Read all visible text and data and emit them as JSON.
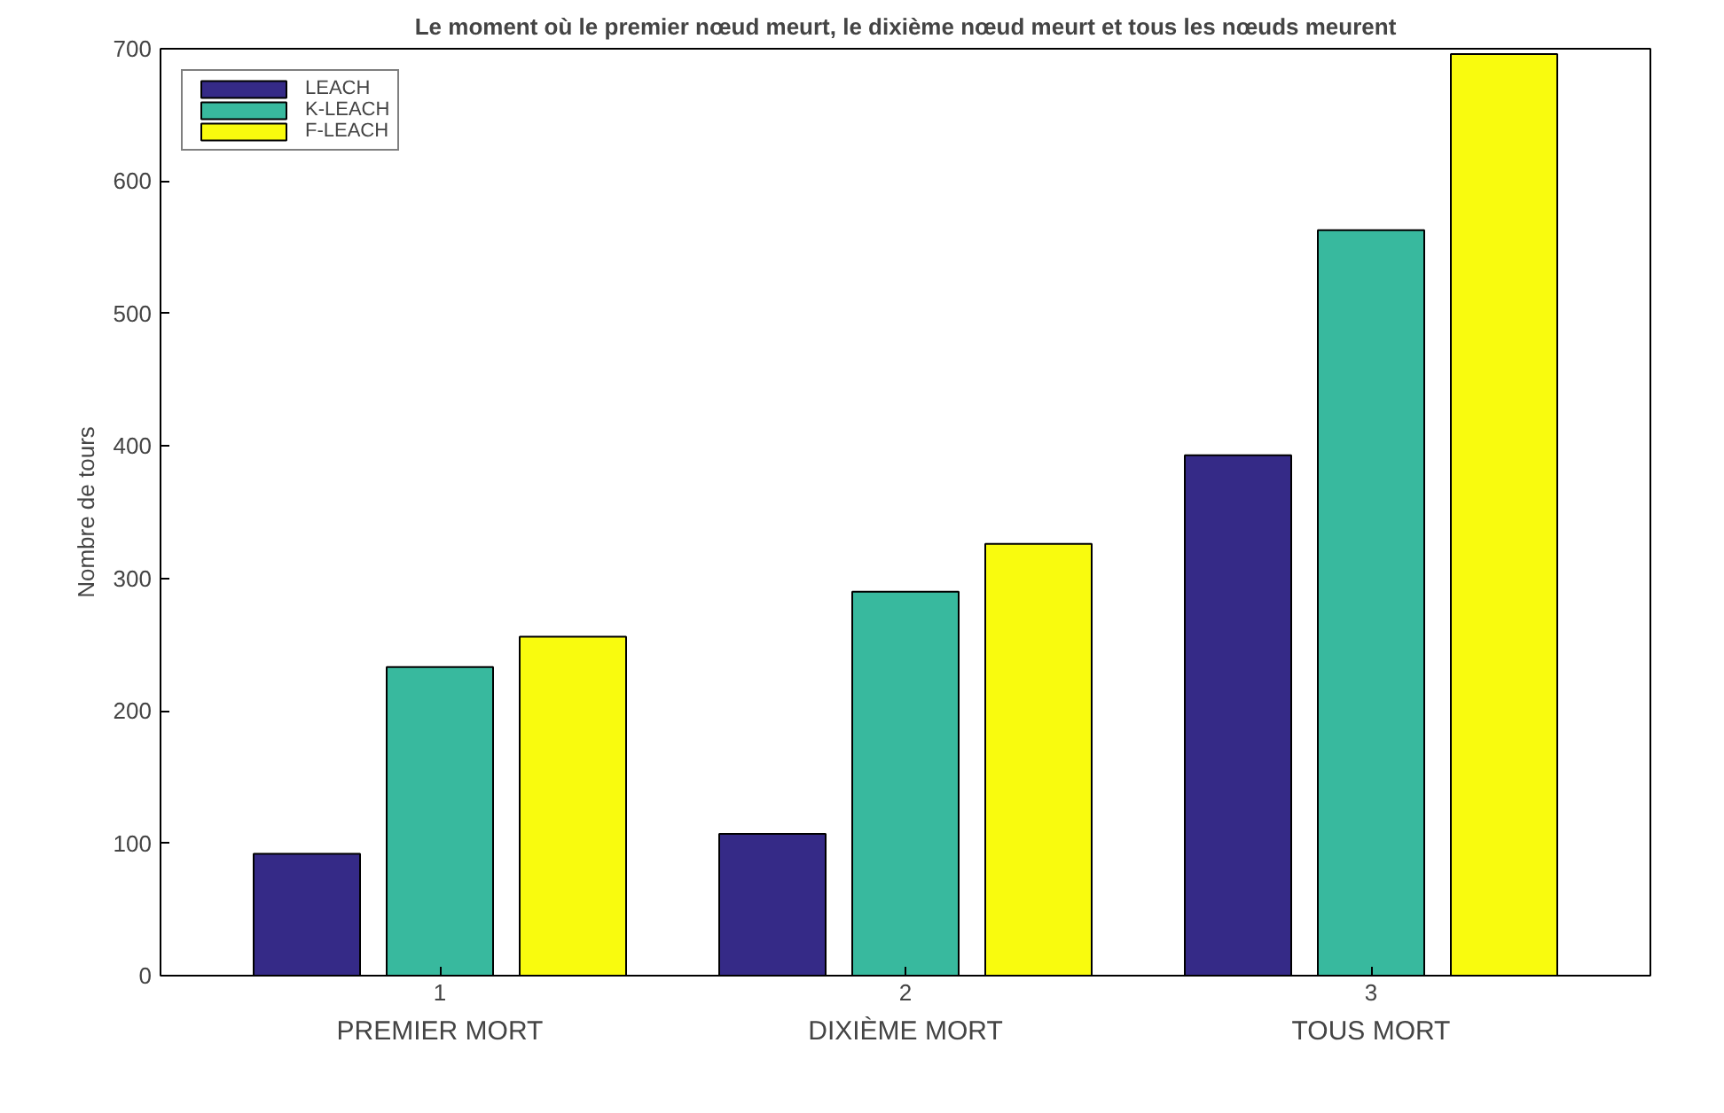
{
  "chart_data": {
    "type": "bar",
    "title": "Le moment où le premier nœud meurt, le dixième nœud meurt et tous les nœuds meurent",
    "ylabel": "Nombre de tours",
    "x": [
      1,
      2,
      3
    ],
    "xlim": [
      0.4,
      3.6
    ],
    "xticks": [
      1,
      2,
      3
    ],
    "ylim": [
      0,
      700
    ],
    "yticks": [
      0,
      100,
      200,
      300,
      400,
      500,
      600,
      700
    ],
    "annotations": [
      "PREMIER MORT",
      "DIXIÈME MORT",
      "TOUS MORT"
    ],
    "series": [
      {
        "name": "LEACH",
        "color": "#352a87",
        "values": [
          92,
          107,
          393
        ]
      },
      {
        "name": "K-LEACH",
        "color": "#38b99e",
        "values": [
          233,
          290,
          563
        ]
      },
      {
        "name": "F-LEACH",
        "color": "#f9fb0e",
        "values": [
          256,
          326,
          696
        ]
      }
    ],
    "legend": "top left",
    "grid": false
  }
}
